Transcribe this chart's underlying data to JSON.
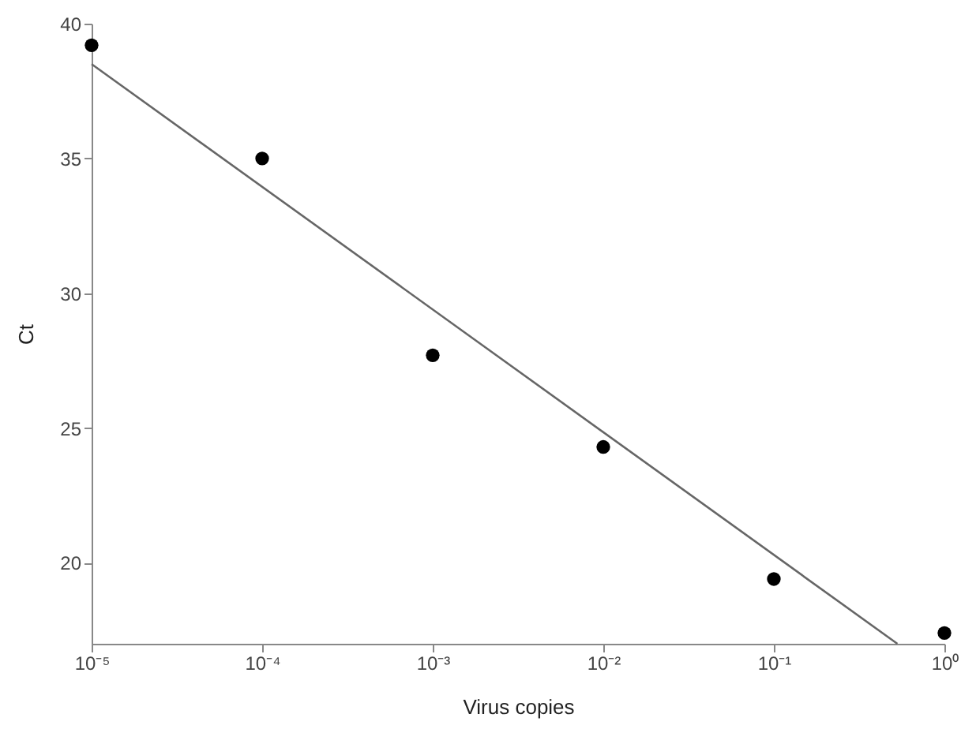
{
  "chart_data": {
    "type": "scatter",
    "xlabel": "Virus copies",
    "ylabel": "Ct",
    "log": "x",
    "grid": false,
    "xlim": [
      1e-05,
      1
    ],
    "ylim": [
      17,
      40
    ],
    "xticks": [
      {
        "value": 1e-05,
        "label": "10⁻⁵"
      },
      {
        "value": 0.0001,
        "label": "10⁻⁴"
      },
      {
        "value": 0.001,
        "label": "10⁻³"
      },
      {
        "value": 0.01,
        "label": "10⁻²"
      },
      {
        "value": 0.1,
        "label": "10⁻¹"
      },
      {
        "value": 1,
        "label": "10⁰"
      }
    ],
    "yticks": [
      20,
      25,
      30,
      35,
      40
    ],
    "series": [
      {
        "color": "#000000",
        "marker": "circle",
        "x": [
          1e-05,
          0.0001,
          0.001,
          0.01,
          0.1,
          1
        ],
        "values": [
          39.2,
          35.0,
          27.7,
          24.3,
          19.4,
          17.4
        ]
      },
      {
        "type": "line",
        "color": "#666666",
        "x": [
          1e-05,
          0.53
        ],
        "values": [
          38.5,
          17
        ]
      }
    ]
  }
}
